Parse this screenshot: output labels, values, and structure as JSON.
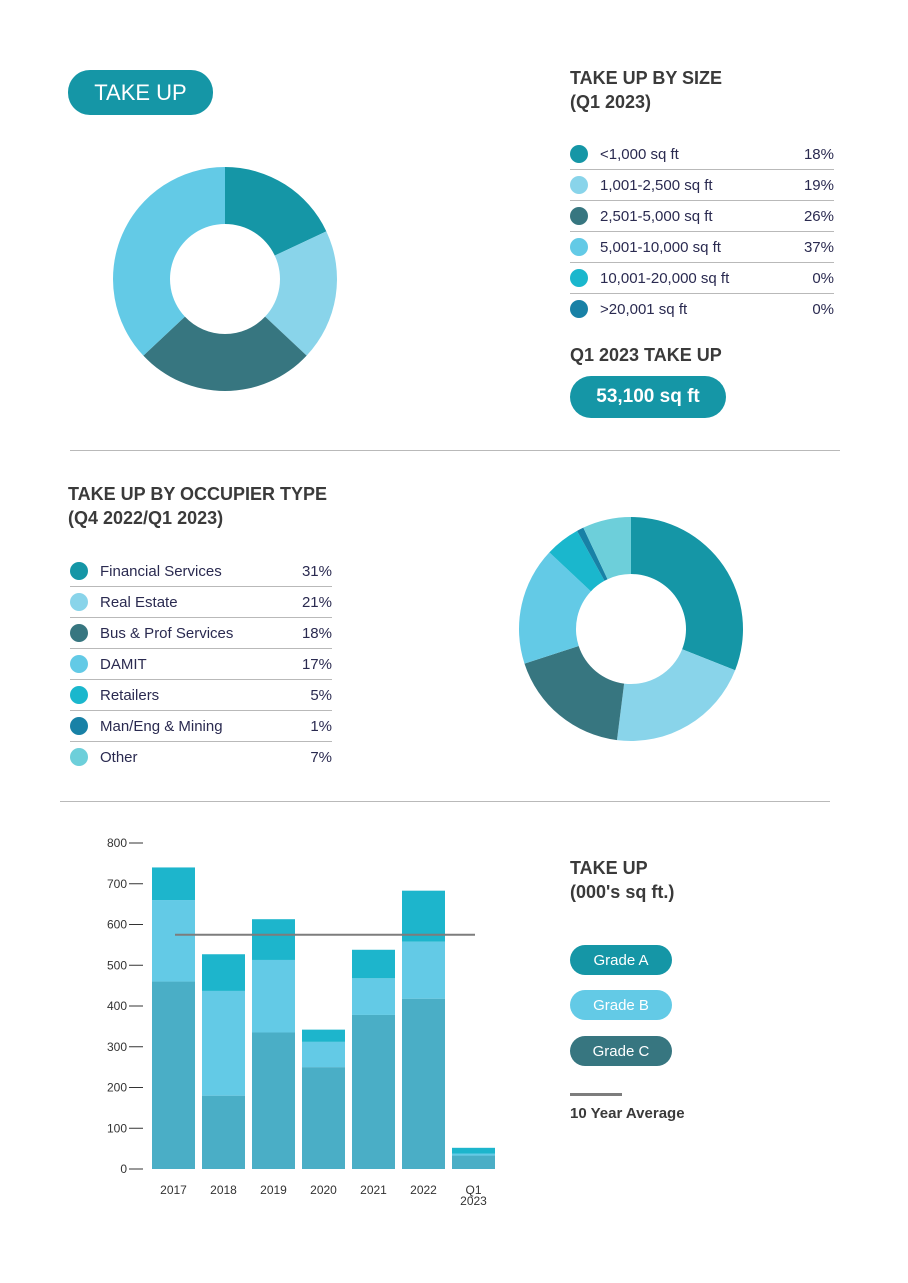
{
  "colors": {
    "teal": "#1596a6",
    "light_blue": "#89d4ea",
    "dark_teal": "#377680",
    "sky": "#63cae6",
    "cyan": "#1ab7cd",
    "deep_blue": "#1881a6",
    "aqua": "#6dcfda",
    "gradeA_bar": "#4aaec6",
    "gradeB_bar": "#63cae6",
    "gradeC_bar": "#1db5cc",
    "avg_line": "#7d7d7d"
  },
  "title_pill": "TAKE UP",
  "size_section": {
    "title": "TAKE UP BY SIZE",
    "subtitle": "(Q1 2023)",
    "rows": [
      {
        "label": "<1,000 sq ft",
        "pct": "18%",
        "color": "#1596a6"
      },
      {
        "label": "1,001-2,500 sq ft",
        "pct": "19%",
        "color": "#89d4ea"
      },
      {
        "label": "2,501-5,000 sq ft",
        "pct": "26%",
        "color": "#377680"
      },
      {
        "label": "5,001-10,000 sq ft",
        "pct": "37%",
        "color": "#63cae6"
      },
      {
        "label": "10,001-20,000 sq ft",
        "pct": "0%",
        "color": "#1ab7cd"
      },
      {
        "label": ">20,001 sq ft",
        "pct": "0%",
        "color": "#1881a6"
      }
    ]
  },
  "q1_takeup": {
    "label": "Q1 2023 TAKE UP",
    "value": "53,100 sq ft"
  },
  "occupier_section": {
    "title": "TAKE UP BY OCCUPIER TYPE",
    "subtitle": "(Q4 2022/Q1 2023)",
    "rows": [
      {
        "label": "Financial Services",
        "pct": "31%",
        "color": "#1596a6"
      },
      {
        "label": "Real Estate",
        "pct": "21%",
        "color": "#89d4ea"
      },
      {
        "label": "Bus & Prof Services",
        "pct": "18%",
        "color": "#377680"
      },
      {
        "label": "DAMIT",
        "pct": "17%",
        "color": "#63cae6"
      },
      {
        "label": "Retailers",
        "pct": "5%",
        "color": "#1ab7cd"
      },
      {
        "label": "Man/Eng & Mining",
        "pct": "1%",
        "color": "#1881a6"
      },
      {
        "label": "Other",
        "pct": "7%",
        "color": "#6dcfda"
      }
    ]
  },
  "bar_section": {
    "title": "TAKE UP",
    "subtitle": "(000's sq ft.)",
    "grade_a": "Grade A",
    "grade_b": "Grade B",
    "grade_c": "Grade C",
    "avg_label": "10 Year Average"
  },
  "chart_data": [
    {
      "type": "pie",
      "title": "",
      "categories": [
        "<1,000 sq ft",
        "1,001-2,500 sq ft",
        "2,501-5,000 sq ft",
        "5,001-10,000 sq ft",
        "10,001-20,000 sq ft",
        ">20,001 sq ft"
      ],
      "values": [
        18,
        19,
        26,
        37,
        0,
        0
      ],
      "colors": [
        "#1596a6",
        "#89d4ea",
        "#377680",
        "#63cae6",
        "#1ab7cd",
        "#1881a6"
      ]
    },
    {
      "type": "pie",
      "title": "",
      "categories": [
        "Financial Services",
        "Real Estate",
        "Bus & Prof Services",
        "DAMIT",
        "Retailers",
        "Man/Eng & Mining",
        "Other"
      ],
      "values": [
        31,
        21,
        18,
        17,
        5,
        1,
        7
      ],
      "colors": [
        "#1596a6",
        "#89d4ea",
        "#377680",
        "#63cae6",
        "#1ab7cd",
        "#1881a6",
        "#6dcfda"
      ]
    },
    {
      "type": "bar",
      "stacked": true,
      "categories": [
        "2017",
        "2018",
        "2019",
        "2020",
        "2021",
        "2022",
        "Q1 2023"
      ],
      "series": [
        {
          "name": "Grade A",
          "values": [
            460,
            180,
            335,
            250,
            378,
            418,
            33
          ],
          "color": "#4aaec6"
        },
        {
          "name": "Grade B",
          "values": [
            200,
            257,
            178,
            62,
            90,
            140,
            5
          ],
          "color": "#63cae6"
        },
        {
          "name": "Grade C",
          "values": [
            80,
            90,
            100,
            30,
            70,
            125,
            14
          ],
          "color": "#1db5cc"
        }
      ],
      "average": {
        "name": "10 Year Average",
        "value": 575
      },
      "yticks": [
        0,
        100,
        200,
        300,
        400,
        500,
        600,
        700,
        800
      ],
      "ylim": [
        0,
        800
      ],
      "grid": false
    }
  ]
}
